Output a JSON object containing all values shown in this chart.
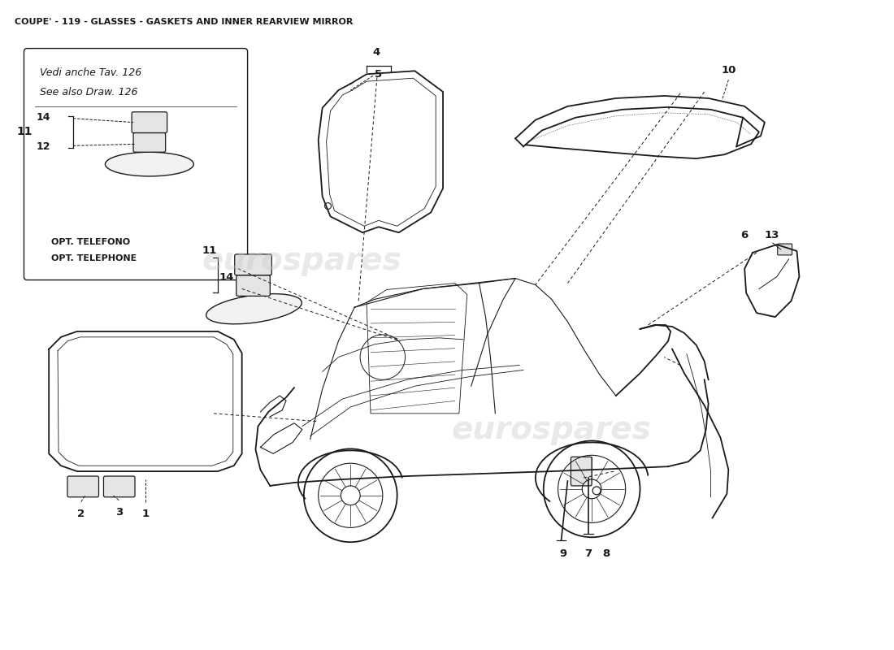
{
  "title": "COUPE' - 119 - GLASSES - GASKETS AND INNER REARVIEW MIRROR",
  "title_fontsize": 8.0,
  "background_color": "#ffffff",
  "watermark_text": "eurospares",
  "watermark_color": "#c8c8c8",
  "watermark_alpha": 0.4,
  "fig_width": 11.0,
  "fig_height": 8.0,
  "dpi": 100,
  "line_color": "#1a1a1a",
  "label_fontsize": 9.5,
  "inset_label_it": "Vedi anche Tav. 126",
  "inset_label_en": "See also Draw. 126",
  "opt_it": "OPT. TELEFONO",
  "opt_en": "OPT. TELEPHONE"
}
